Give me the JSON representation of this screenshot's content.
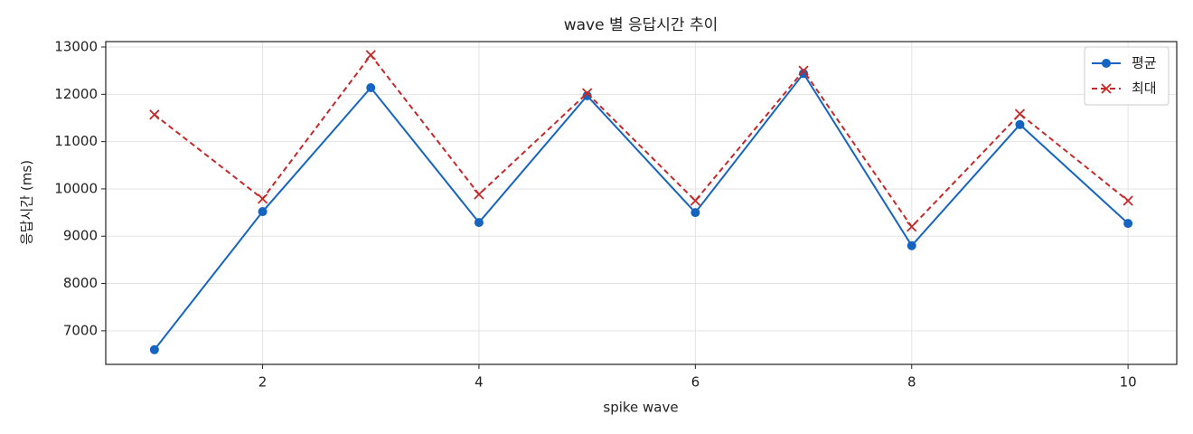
{
  "chart_data": {
    "type": "line",
    "title": "wave 별 응답시간 추이",
    "x_label": "spike wave",
    "y_label": "응답시간 (ms)",
    "x": [
      1,
      2,
      3,
      4,
      5,
      6,
      7,
      8,
      9,
      10
    ],
    "series": [
      {
        "name": "평균",
        "color": "#1565c0",
        "marker": "o",
        "linestyle": "solid",
        "values": [
          6600,
          9520,
          12140,
          9290,
          11970,
          9500,
          12440,
          8800,
          11360,
          9270
        ]
      },
      {
        "name": "최대",
        "color": "#c62828",
        "marker": "x",
        "linestyle": "dashed",
        "values": [
          11570,
          9790,
          12830,
          9885,
          12025,
          9750,
          12500,
          9200,
          11585,
          9750
        ]
      }
    ],
    "xlim": [
      0.55,
      10.45
    ],
    "ylim": [
      6290,
      13115
    ],
    "xticks": [
      2,
      4,
      6,
      8,
      10
    ],
    "yticks": [
      7000,
      8000,
      9000,
      10000,
      11000,
      12000,
      13000
    ],
    "grid": true,
    "legend": "upper right"
  }
}
